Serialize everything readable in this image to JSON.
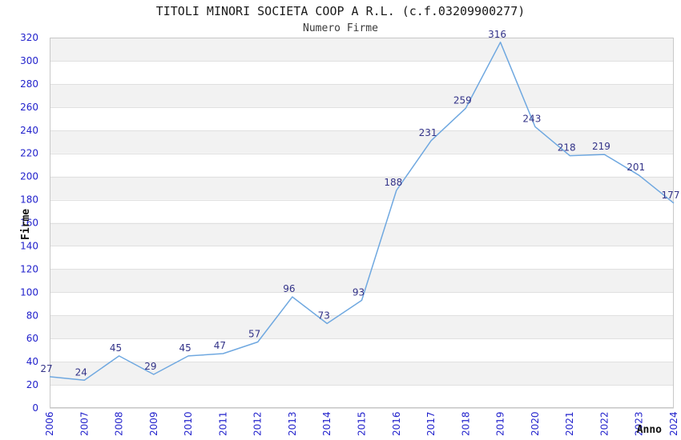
{
  "chart_data": {
    "type": "line",
    "title": "TITOLI MINORI SOCIETA COOP A R.L. (c.f.03209900277)",
    "subtitle": "Numero Firme",
    "xlabel": "Anno",
    "ylabel": "Firme",
    "categories": [
      "2006",
      "2007",
      "2008",
      "2009",
      "2010",
      "2011",
      "2012",
      "2013",
      "2014",
      "2015",
      "2016",
      "2017",
      "2018",
      "2019",
      "2020",
      "2021",
      "2022",
      "2023",
      "2024"
    ],
    "values": [
      27,
      24,
      45,
      29,
      45,
      47,
      57,
      96,
      73,
      93,
      188,
      231,
      259,
      316,
      243,
      218,
      219,
      201,
      177
    ],
    "ylim": [
      0,
      320
    ],
    "ytick_step": 20,
    "grid": "horizontal",
    "background_bands": true,
    "legend": "none",
    "point_labels_visible": true,
    "x_tick_rotation": 90,
    "colors": {
      "line": "#6fa8e0",
      "tick_label": "#2222cc",
      "point_label": "#333388",
      "band_alt": "#f2f2f2",
      "band_base": "#ffffff",
      "gridline": "#e0e0e0",
      "plot_border": "#c8c8c8",
      "title": "#1a1a1a",
      "subtitle": "#3a3a3a",
      "axis_title": "#111111"
    }
  }
}
